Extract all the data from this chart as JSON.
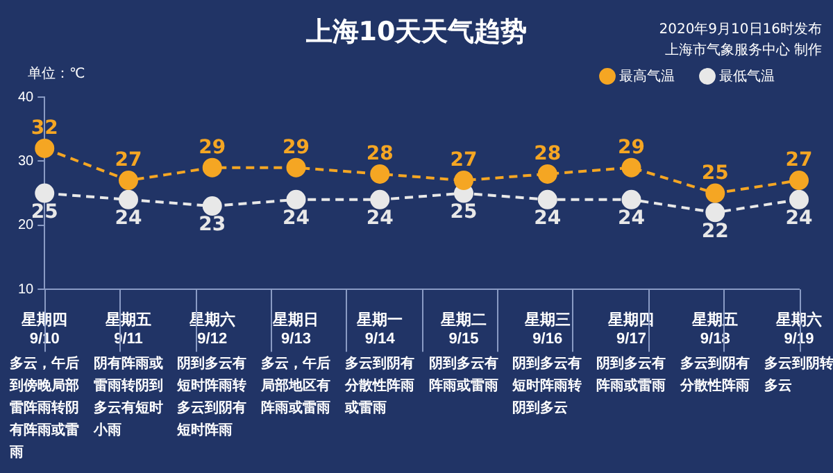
{
  "chart_data": {
    "type": "line",
    "title": "上海10天天气趋势",
    "subtitle": "2020年9月10日16时发布",
    "ylabel": "单位：℃",
    "categories": [
      "星期四\n9/10",
      "星期五\n9/11",
      "星期六\n9/12",
      "星期日\n9/13",
      "星期一\n9/14",
      "星期二\n9/15",
      "星期三\n9/16",
      "星期四\n9/17",
      "星期五\n9/18",
      "星期六\n9/19"
    ],
    "series": [
      {
        "name": "最高气温",
        "color": "#f5a623",
        "values": [
          32,
          27,
          29,
          29,
          28,
          27,
          28,
          29,
          25,
          27
        ]
      },
      {
        "name": "最低气温",
        "color": "#e8e8e8",
        "values": [
          25,
          24,
          23,
          24,
          24,
          25,
          24,
          24,
          22,
          24
        ]
      }
    ],
    "ylim": [
      10,
      40
    ],
    "yticks": [
      10,
      20,
      30,
      40
    ],
    "grid": false,
    "legend": "top right",
    "marker": "circle",
    "line_style": "dashed",
    "data_labels": true,
    "annotations": [
      "多云，午后到傍晚局部雷阵雨转阴有阵雨或雷雨",
      "阴有阵雨或雷雨转阴到多云有短时小雨",
      "阴到多云有短时阵雨转多云到阴有短时阵雨",
      "多云，午后局部地区有阵雨或雷雨",
      "多云到阴有分散性阵雨或雷雨",
      "阴到多云有阵雨或雷雨",
      "阴到多云有短时阵雨转阴到多云",
      "阴到多云有阵雨或雷雨",
      "多云到阴有分散性阵雨",
      "多云到阴转多云",
      "上海市气象服务中心 制作"
    ]
  }
}
